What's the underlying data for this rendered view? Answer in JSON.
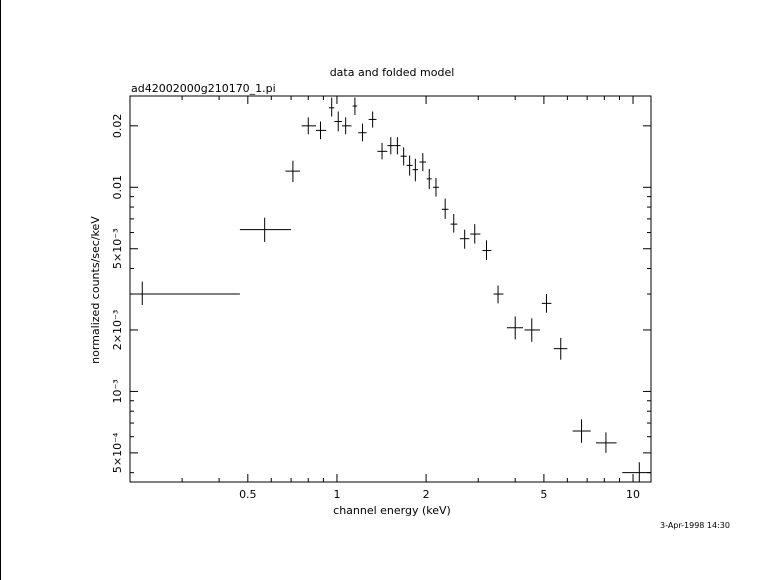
{
  "chart_data": {
    "type": "scatter",
    "title": "data and folded model",
    "subtitle": "ad42002000g210170_1.pi",
    "xlabel": "channel energy (keV)",
    "ylabel": "normalized counts/sec/keV",
    "footer": "3-Apr-1998 14:30",
    "xscale": "log",
    "yscale": "log",
    "xlim": [
      0.2,
      11.5
    ],
    "ylim": [
      0.00036,
      0.028
    ],
    "x_ticks": [
      {
        "value": 0.5,
        "label": "0.5"
      },
      {
        "value": 1,
        "label": "1"
      },
      {
        "value": 2,
        "label": "2"
      },
      {
        "value": 5,
        "label": "5"
      },
      {
        "value": 10,
        "label": "10"
      }
    ],
    "y_ticks": [
      {
        "value": 0.02,
        "label": "0.02"
      },
      {
        "value": 0.01,
        "label": "0.01"
      },
      {
        "value": 0.005,
        "label": "5×10⁻³"
      },
      {
        "value": 0.002,
        "label": "2×10⁻³"
      },
      {
        "value": 0.001,
        "label": "10⁻³"
      },
      {
        "value": 0.0005,
        "label": "5×10⁻⁴"
      }
    ],
    "points": [
      {
        "x": 0.22,
        "y": 0.003,
        "xlo": 0.2,
        "xhi": 0.47,
        "ylo": 0.00265,
        "yhi": 0.00345
      },
      {
        "x": 0.57,
        "y": 0.0062,
        "xlo": 0.47,
        "xhi": 0.7,
        "ylo": 0.0054,
        "yhi": 0.0071
      },
      {
        "x": 0.71,
        "y": 0.012,
        "xlo": 0.67,
        "xhi": 0.75,
        "ylo": 0.0106,
        "yhi": 0.0135
      },
      {
        "x": 0.8,
        "y": 0.02,
        "xlo": 0.76,
        "xhi": 0.85,
        "ylo": 0.0182,
        "yhi": 0.022
      },
      {
        "x": 0.88,
        "y": 0.019,
        "xlo": 0.85,
        "xhi": 0.92,
        "ylo": 0.0172,
        "yhi": 0.021
      },
      {
        "x": 0.96,
        "y": 0.0245,
        "xlo": 0.94,
        "xhi": 0.98,
        "ylo": 0.0222,
        "yhi": 0.0275
      },
      {
        "x": 1.01,
        "y": 0.021,
        "xlo": 0.98,
        "xhi": 1.04,
        "ylo": 0.0188,
        "yhi": 0.0235
      },
      {
        "x": 1.07,
        "y": 0.02,
        "xlo": 1.04,
        "xhi": 1.12,
        "ylo": 0.0182,
        "yhi": 0.022
      },
      {
        "x": 1.15,
        "y": 0.025,
        "xlo": 1.13,
        "xhi": 1.17,
        "ylo": 0.0226,
        "yhi": 0.0275
      },
      {
        "x": 1.22,
        "y": 0.0185,
        "xlo": 1.18,
        "xhi": 1.26,
        "ylo": 0.0168,
        "yhi": 0.0205
      },
      {
        "x": 1.32,
        "y": 0.0215,
        "xlo": 1.28,
        "xhi": 1.36,
        "ylo": 0.0196,
        "yhi": 0.0235
      },
      {
        "x": 1.42,
        "y": 0.015,
        "xlo": 1.37,
        "xhi": 1.48,
        "ylo": 0.0137,
        "yhi": 0.0165
      },
      {
        "x": 1.52,
        "y": 0.016,
        "xlo": 1.48,
        "xhi": 1.56,
        "ylo": 0.0145,
        "yhi": 0.0176
      },
      {
        "x": 1.6,
        "y": 0.016,
        "xlo": 1.56,
        "xhi": 1.64,
        "ylo": 0.0145,
        "yhi": 0.0176
      },
      {
        "x": 1.68,
        "y": 0.0142,
        "xlo": 1.64,
        "xhi": 1.72,
        "ylo": 0.0128,
        "yhi": 0.0157
      },
      {
        "x": 1.76,
        "y": 0.0128,
        "xlo": 1.72,
        "xhi": 1.8,
        "ylo": 0.0114,
        "yhi": 0.0143
      },
      {
        "x": 1.84,
        "y": 0.0122,
        "xlo": 1.8,
        "xhi": 1.88,
        "ylo": 0.0107,
        "yhi": 0.0138
      },
      {
        "x": 1.95,
        "y": 0.0133,
        "xlo": 1.9,
        "xhi": 2.0,
        "ylo": 0.012,
        "yhi": 0.0147
      },
      {
        "x": 2.05,
        "y": 0.011,
        "xlo": 2.01,
        "xhi": 2.09,
        "ylo": 0.0098,
        "yhi": 0.0123
      },
      {
        "x": 2.16,
        "y": 0.01,
        "xlo": 2.11,
        "xhi": 2.21,
        "ylo": 0.009,
        "yhi": 0.0111
      },
      {
        "x": 2.32,
        "y": 0.0078,
        "xlo": 2.26,
        "xhi": 2.38,
        "ylo": 0.007,
        "yhi": 0.0088
      },
      {
        "x": 2.48,
        "y": 0.0066,
        "xlo": 2.42,
        "xhi": 2.55,
        "ylo": 0.006,
        "yhi": 0.0074
      },
      {
        "x": 2.7,
        "y": 0.0056,
        "xlo": 2.6,
        "xhi": 2.8,
        "ylo": 0.005,
        "yhi": 0.0062
      },
      {
        "x": 2.92,
        "y": 0.0059,
        "xlo": 2.82,
        "xhi": 3.05,
        "ylo": 0.0053,
        "yhi": 0.0066
      },
      {
        "x": 3.2,
        "y": 0.0049,
        "xlo": 3.1,
        "xhi": 3.32,
        "ylo": 0.0044,
        "yhi": 0.0055
      },
      {
        "x": 3.5,
        "y": 0.003,
        "xlo": 3.38,
        "xhi": 3.65,
        "ylo": 0.0027,
        "yhi": 0.0033
      },
      {
        "x": 4.0,
        "y": 0.00205,
        "xlo": 3.75,
        "xhi": 4.25,
        "ylo": 0.0018,
        "yhi": 0.00233
      },
      {
        "x": 4.55,
        "y": 0.002,
        "xlo": 4.3,
        "xhi": 4.85,
        "ylo": 0.00175,
        "yhi": 0.00228
      },
      {
        "x": 5.1,
        "y": 0.0027,
        "xlo": 4.92,
        "xhi": 5.3,
        "ylo": 0.00243,
        "yhi": 0.003
      },
      {
        "x": 5.7,
        "y": 0.00162,
        "xlo": 5.4,
        "xhi": 6.0,
        "ylo": 0.00143,
        "yhi": 0.00183
      },
      {
        "x": 6.7,
        "y": 0.00064,
        "xlo": 6.25,
        "xhi": 7.2,
        "ylo": 0.00056,
        "yhi": 0.00073
      },
      {
        "x": 8.1,
        "y": 0.00056,
        "xlo": 7.5,
        "xhi": 8.8,
        "ylo": 0.0005,
        "yhi": 0.00063
      },
      {
        "x": 10.5,
        "y": 0.0004,
        "xlo": 9.2,
        "xhi": 11.5,
        "ylo": 0.00036,
        "yhi": 0.00045
      }
    ]
  }
}
